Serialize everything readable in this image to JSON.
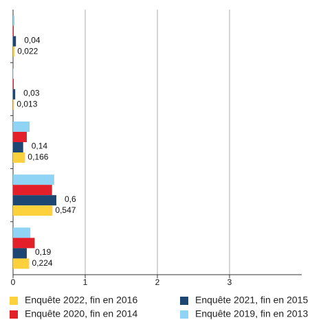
{
  "chart_data": {
    "type": "hbar",
    "categories": [
      null,
      null,
      null,
      null,
      null
    ],
    "series": [
      {
        "name": "Enquête 2019, fin en 2013",
        "color": "#8fd3f5",
        "values": [
          0.02,
          0.005,
          0.23,
          0.57,
          0.24
        ]
      },
      {
        "name": "Enquête 2020, fin en 2014",
        "color": "#e3202a",
        "values": [
          0.01,
          0.01,
          0.19,
          0.54,
          0.3
        ]
      },
      {
        "name": "Enquête 2021, fin en 2015",
        "color": "#1d4672",
        "values": [
          0.04,
          0.03,
          0.14,
          0.6,
          0.19
        ],
        "value_labels": [
          "0,04",
          "0,03",
          "0,14",
          "0,6",
          "0,19"
        ]
      },
      {
        "name": "Enquête 2022, fin en 2016",
        "color": "#fdd13b",
        "values": [
          0.022,
          0.013,
          0.166,
          0.547,
          0.224
        ],
        "value_labels": [
          "0,022",
          "0,013",
          "0,166",
          "0,547",
          "0,224"
        ]
      }
    ],
    "xlim": [
      0,
      4
    ],
    "xticks": [
      0,
      1,
      2,
      3
    ],
    "grid": true
  }
}
